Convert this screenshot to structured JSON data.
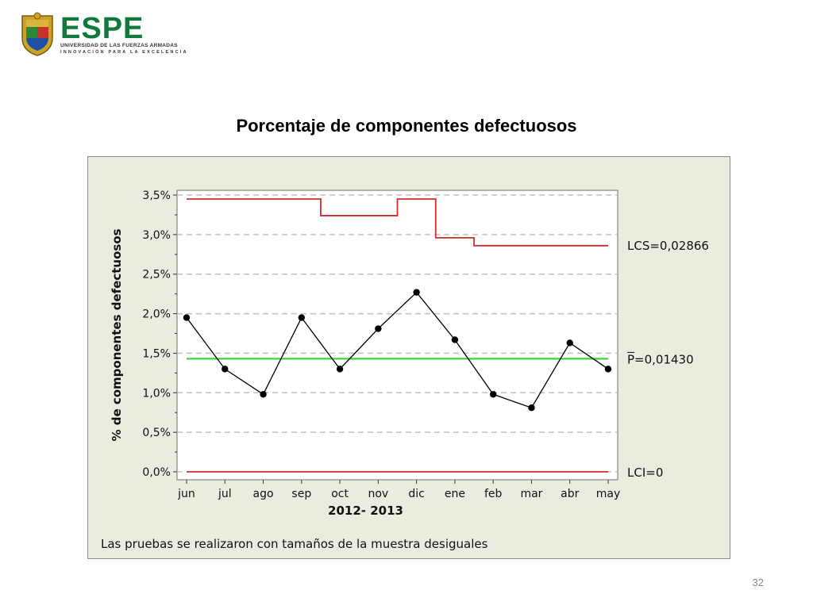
{
  "header": {
    "logo_text": "ESPE",
    "logo_subtitle": "UNIVERSIDAD DE LAS FUERZAS ARMADAS",
    "logo_tagline": "INNOVACIÓN PARA LA EXCELENCIA"
  },
  "slide_title": "Porcentaje de componentes defectuosos",
  "page_number": "32",
  "colors": {
    "control_limit": "#d22b2b",
    "center_line": "#3ad63a",
    "data_line": "#000000",
    "panel_bg": "#ecebdf",
    "brand_green": "#0f7a3c"
  },
  "chart_data": {
    "type": "line",
    "categories": [
      "jun",
      "jul",
      "ago",
      "sep",
      "oct",
      "nov",
      "dic",
      "ene",
      "feb",
      "mar",
      "abr",
      "may"
    ],
    "series": [
      {
        "name": "",
        "values": [
          1.95,
          1.3,
          0.98,
          1.95,
          1.3,
          1.81,
          2.27,
          1.67,
          0.98,
          0.81,
          1.63,
          1.3
        ]
      }
    ],
    "ucl_step": [
      3.45,
      3.45,
      3.45,
      3.45,
      3.24,
      3.24,
      3.45,
      2.96,
      2.86,
      2.86,
      2.86,
      2.86
    ],
    "center": 1.43,
    "lcl": 0,
    "limit_labels": {
      "ucl": "LCS=0,02866",
      "center": "P=0,01430",
      "lcl": "LCI=0"
    },
    "yticks": [
      "0,0%",
      "0,5%",
      "1,0%",
      "1,5%",
      "2,0%",
      "2,5%",
      "3,0%",
      "3,5%"
    ],
    "ylim": [
      0,
      3.5
    ],
    "xlabel": "2012- 2013",
    "ylabel": "% de componentes defectuosos",
    "note": "Las pruebas se realizaron con tamaños de la muestra desiguales",
    "grid": true
  }
}
